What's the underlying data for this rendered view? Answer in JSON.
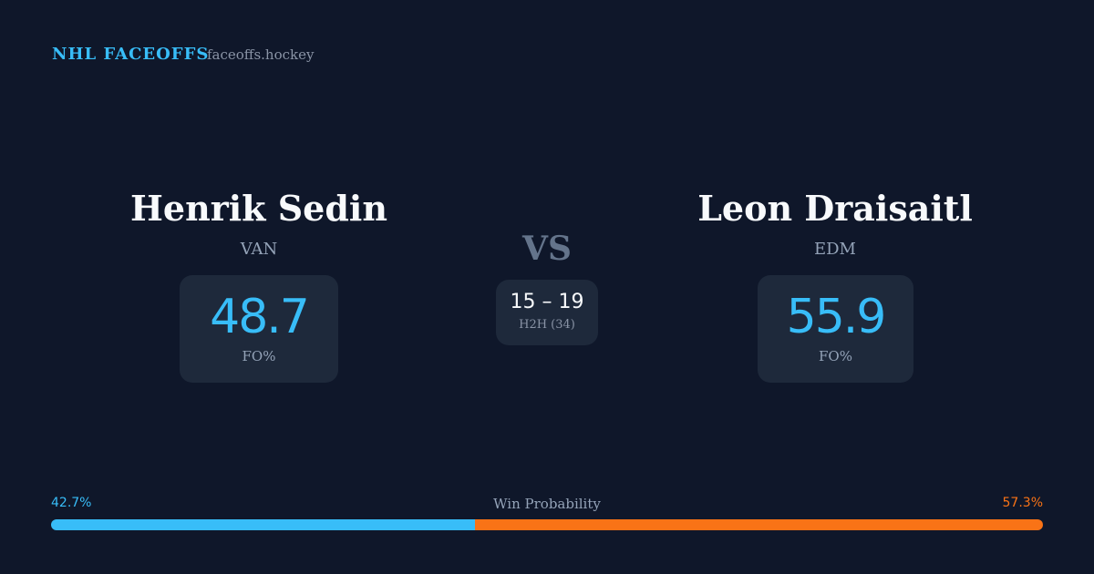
{
  "header": {
    "title": "NHL FACEOFFS",
    "site": "faceoffs.hockey"
  },
  "left_player": {
    "name": "Henrik Sedin",
    "team": "VAN",
    "fo_pct": 48.7,
    "fo_label": "FO%"
  },
  "versus": {
    "label": "VS",
    "score": "15 – 19",
    "h2h": "H2H (34)"
  },
  "right_player": {
    "name": "Leon Draisaitl",
    "team": "EDM",
    "fo_pct": 55.9,
    "fo_label": "FO%"
  },
  "win_probability": {
    "title": "Win Probability",
    "left": {
      "value": 42.7,
      "label": "42.7%",
      "color": "#38bdf8"
    },
    "right": {
      "value": 57.3,
      "label": "57.3%",
      "color": "#f97316"
    }
  }
}
